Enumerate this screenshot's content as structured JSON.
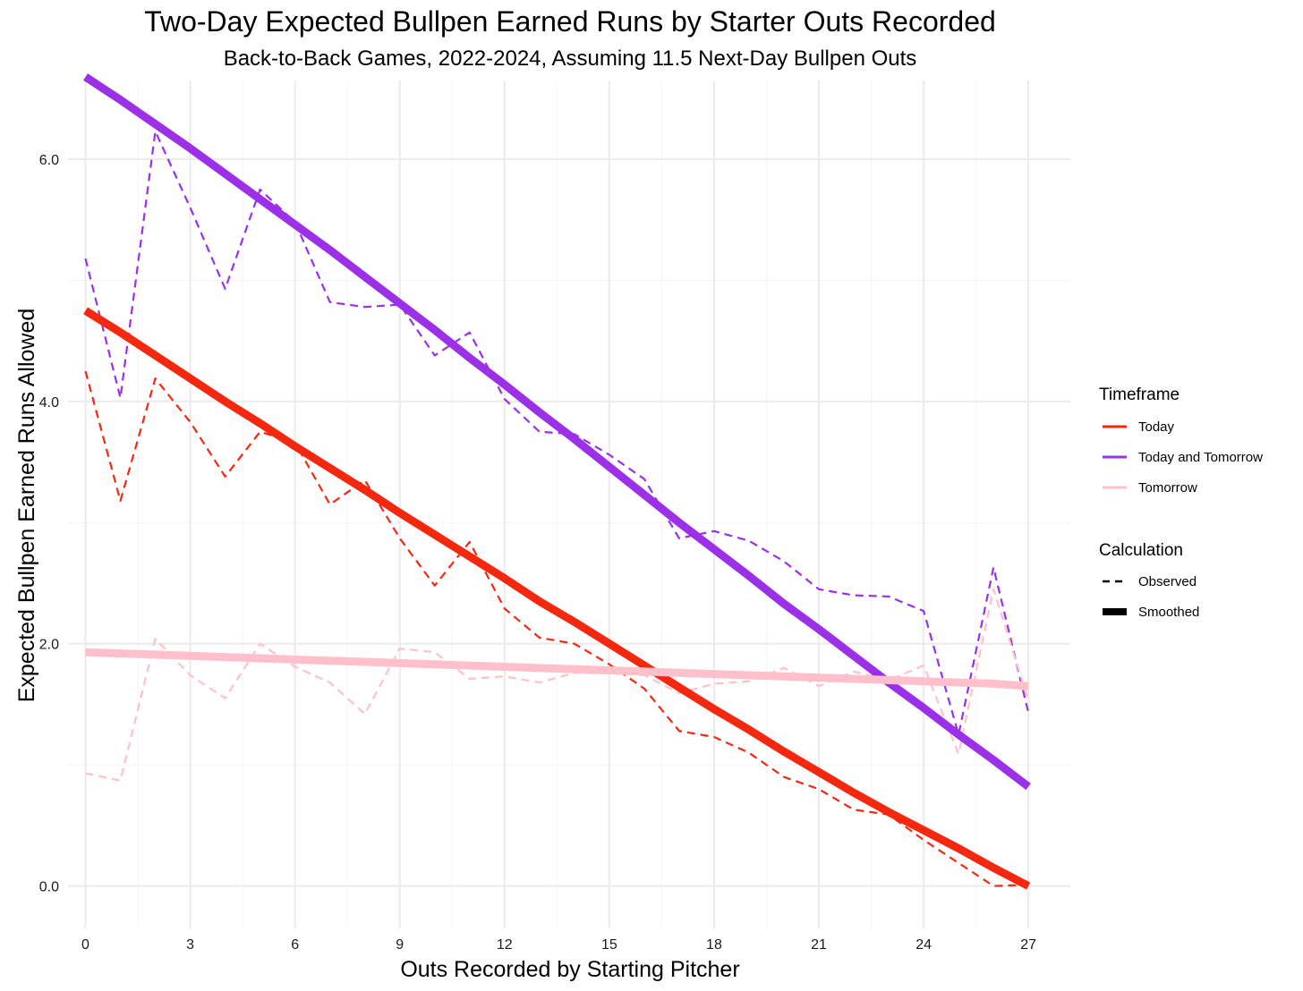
{
  "chart_data": {
    "type": "line",
    "title": "Two-Day Expected Bullpen Earned Runs by Starter Outs Recorded",
    "subtitle": "Back-to-Back Games, 2022-2024, Assuming 11.5 Next-Day Bullpen Outs",
    "xlabel": "Outs Recorded by Starting Pitcher",
    "ylabel": "Expected Bullpen Earned Runs Allowed",
    "xlim": [
      -0.5,
      28.2
    ],
    "ylim": [
      -0.35,
      6.65
    ],
    "x_ticks": [
      0,
      3,
      6,
      9,
      12,
      15,
      18,
      21,
      24,
      27
    ],
    "x_tick_labels": [
      "0",
      "3",
      "6",
      "9",
      "12",
      "15",
      "18",
      "21",
      "24",
      "27"
    ],
    "y_ticks": [
      0,
      2,
      4,
      6
    ],
    "y_tick_labels": [
      "0.0",
      "2.0",
      "4.0",
      "6.0"
    ],
    "grid": true,
    "legend_position": "right",
    "x": [
      0,
      1,
      2,
      3,
      4,
      5,
      6,
      7,
      8,
      9,
      10,
      11,
      12,
      13,
      14,
      15,
      16,
      17,
      18,
      19,
      20,
      21,
      22,
      23,
      24,
      25,
      26,
      27
    ],
    "series": [
      {
        "name": "Today",
        "calculation": "Observed",
        "color": "#f4280f",
        "values": [
          4.25,
          3.18,
          4.19,
          3.83,
          3.38,
          3.75,
          3.66,
          3.15,
          3.35,
          2.87,
          2.48,
          2.84,
          2.29,
          2.05,
          2.0,
          1.83,
          1.63,
          1.28,
          1.23,
          1.1,
          0.9,
          0.8,
          0.63,
          0.59,
          0.38,
          0.19,
          0.0,
          0.01
        ]
      },
      {
        "name": "Today",
        "calculation": "Smoothed",
        "color": "#f4280f",
        "values": [
          4.75,
          4.57,
          4.38,
          4.19,
          4.0,
          3.82,
          3.63,
          3.45,
          3.27,
          3.08,
          2.9,
          2.72,
          2.54,
          2.35,
          2.18,
          2.0,
          1.82,
          1.64,
          1.46,
          1.29,
          1.11,
          0.94,
          0.77,
          0.61,
          0.46,
          0.31,
          0.15,
          0.0
        ]
      },
      {
        "name": "Today and Tomorrow",
        "calculation": "Observed",
        "color": "#9b30e8",
        "values": [
          5.18,
          4.03,
          6.23,
          5.6,
          4.93,
          5.75,
          5.48,
          4.82,
          4.78,
          4.8,
          4.38,
          4.57,
          4.02,
          3.75,
          3.73,
          3.56,
          3.36,
          2.87,
          2.93,
          2.85,
          2.68,
          2.45,
          2.4,
          2.39,
          2.27,
          1.25,
          2.63,
          1.43
        ]
      },
      {
        "name": "Today and Tomorrow",
        "calculation": "Smoothed",
        "color": "#9b30e8",
        "values": [
          6.68,
          6.49,
          6.29,
          6.09,
          5.88,
          5.67,
          5.46,
          5.25,
          5.03,
          4.81,
          4.59,
          4.36,
          4.14,
          3.91,
          3.69,
          3.46,
          3.23,
          3.0,
          2.78,
          2.56,
          2.33,
          2.12,
          1.9,
          1.68,
          1.47,
          1.25,
          1.04,
          0.82
        ]
      },
      {
        "name": "Tomorrow",
        "calculation": "Observed",
        "color": "#ffc0cb",
        "values": [
          0.93,
          0.87,
          2.04,
          1.74,
          1.55,
          2.0,
          1.81,
          1.68,
          1.42,
          1.96,
          1.93,
          1.71,
          1.73,
          1.68,
          1.76,
          1.76,
          1.74,
          1.59,
          1.67,
          1.69,
          1.8,
          1.65,
          1.77,
          1.7,
          1.82,
          1.09,
          2.45,
          1.53
        ]
      },
      {
        "name": "Tomorrow",
        "calculation": "Smoothed",
        "color": "#ffc0cb",
        "values": [
          1.93,
          1.92,
          1.91,
          1.9,
          1.89,
          1.88,
          1.87,
          1.86,
          1.85,
          1.84,
          1.83,
          1.82,
          1.81,
          1.8,
          1.79,
          1.78,
          1.77,
          1.76,
          1.75,
          1.74,
          1.73,
          1.72,
          1.71,
          1.7,
          1.69,
          1.68,
          1.67,
          1.65
        ]
      }
    ],
    "legend": {
      "groups": [
        {
          "title": "Timeframe",
          "items": [
            {
              "label": "Today",
              "color": "#f4280f"
            },
            {
              "label": "Today and Tomorrow",
              "color": "#9b30e8"
            },
            {
              "label": "Tomorrow",
              "color": "#ffc0cb"
            }
          ]
        },
        {
          "title": "Calculation",
          "items": [
            {
              "label": "Observed",
              "style": "dashed"
            },
            {
              "label": "Smoothed",
              "style": "solid-thick"
            }
          ]
        }
      ]
    }
  }
}
